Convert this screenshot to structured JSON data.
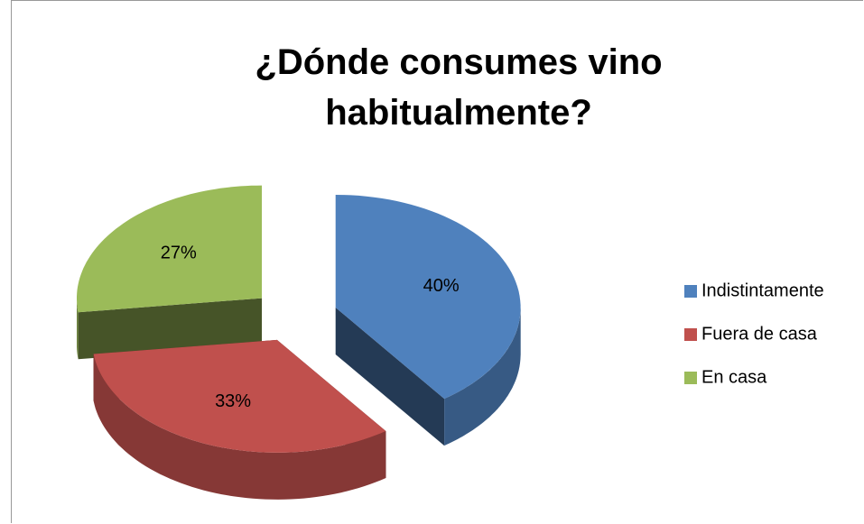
{
  "chart_data": {
    "type": "pie3d",
    "title": "¿Dónde consumes vino habitualmente?",
    "categories": [
      "Indistintamente",
      "Fuera de casa",
      "En casa"
    ],
    "values": [
      40,
      33,
      27
    ],
    "value_labels": [
      "40%",
      "33%",
      "27%"
    ],
    "colors": [
      "#4f81bd",
      "#c0504d",
      "#9bbb59"
    ],
    "legend": "right"
  }
}
